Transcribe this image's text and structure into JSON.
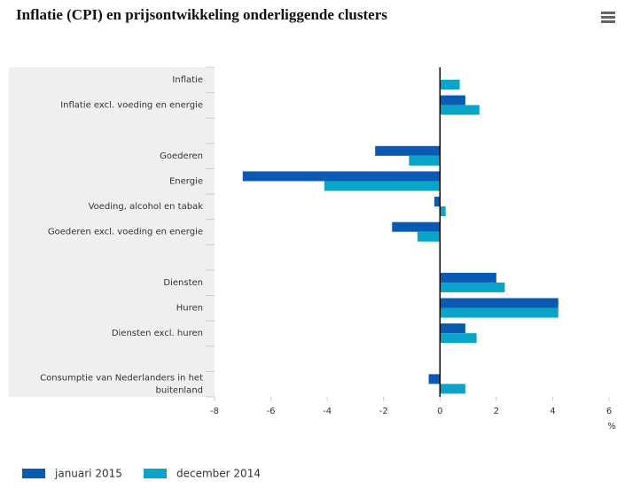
{
  "chart_data": {
    "type": "hbar",
    "title": "Inflatie (CPI) en prijsontwikkeling onderliggende clusters",
    "x_label": "%",
    "categories": [
      "Inflatie",
      "Inflatie excl. voeding en energie",
      null,
      "Goederen",
      "Energie",
      "Voeding, alcohol en tabak",
      "Goederen excl. voeding en energie",
      null,
      "Diensten",
      "Huren",
      "Diensten excl. huren",
      null,
      "Consumptie van Nederlanders in het buitenland"
    ],
    "series": [
      {
        "name": "januari 2015",
        "color": "#0a5ab4",
        "values": [
          0,
          0.9,
          null,
          -2.3,
          -7.0,
          -0.2,
          -1.7,
          null,
          2.0,
          4.2,
          0.9,
          null,
          -0.4
        ]
      },
      {
        "name": "december 2014",
        "color": "#0aa4c8",
        "values": [
          0.7,
          1.4,
          null,
          -1.1,
          -4.1,
          0.2,
          -0.8,
          null,
          2.3,
          4.2,
          1.3,
          null,
          0.9
        ]
      }
    ],
    "xlim": [
      -8,
      6
    ],
    "xticks": [
      -8,
      -6,
      -4,
      -2,
      0,
      2,
      4,
      6
    ]
  }
}
